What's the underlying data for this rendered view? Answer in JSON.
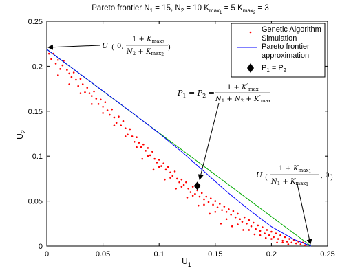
{
  "chart_data": {
    "type": "scatter",
    "title": "Pareto frontier N_1 = 15, N_2 = 10   K_max_1 = 5   K_max_2 = 3",
    "xlabel": "U_1",
    "ylabel": "U_2",
    "xlim": [
      0,
      0.25
    ],
    "ylim": [
      0,
      0.25
    ],
    "xticks": [
      "0",
      "0.05",
      "0.1",
      "0.15",
      "0.2",
      "0.25"
    ],
    "yticks": [
      "0",
      "0.05",
      "0.1",
      "0.15",
      "0.2",
      "0.25"
    ],
    "grid": false,
    "legend_position": "top-right",
    "legend": [
      "Genetic Algorithm Simulation",
      "Pareto frontier approximation",
      "P_1 = P_2"
    ],
    "series": [
      {
        "name": "Genetic Algorithm Simulation",
        "type": "scatter",
        "color": "#ff0000",
        "points": [
          [
            0.002,
            0.214
          ],
          [
            0.004,
            0.208
          ],
          [
            0.006,
            0.214
          ],
          [
            0.008,
            0.203
          ],
          [
            0.01,
            0.207
          ],
          [
            0.012,
            0.197
          ],
          [
            0.014,
            0.201
          ],
          [
            0.015,
            0.206
          ],
          [
            0.018,
            0.196
          ],
          [
            0.02,
            0.192
          ],
          [
            0.022,
            0.188
          ],
          [
            0.024,
            0.193
          ],
          [
            0.026,
            0.185
          ],
          [
            0.028,
            0.178
          ],
          [
            0.03,
            0.186
          ],
          [
            0.032,
            0.18
          ],
          [
            0.034,
            0.171
          ],
          [
            0.036,
            0.176
          ],
          [
            0.038,
            0.17
          ],
          [
            0.04,
            0.167
          ],
          [
            0.042,
            0.172
          ],
          [
            0.044,
            0.164
          ],
          [
            0.046,
            0.158
          ],
          [
            0.048,
            0.163
          ],
          [
            0.05,
            0.155
          ],
          [
            0.052,
            0.16
          ],
          [
            0.054,
            0.151
          ],
          [
            0.056,
            0.146
          ],
          [
            0.058,
            0.152
          ],
          [
            0.06,
            0.143
          ],
          [
            0.062,
            0.137
          ],
          [
            0.064,
            0.144
          ],
          [
            0.066,
            0.134
          ],
          [
            0.068,
            0.139
          ],
          [
            0.07,
            0.131
          ],
          [
            0.072,
            0.124
          ],
          [
            0.074,
            0.13
          ],
          [
            0.076,
            0.122
          ],
          [
            0.078,
            0.116
          ],
          [
            0.08,
            0.121
          ],
          [
            0.082,
            0.115
          ],
          [
            0.084,
            0.11
          ],
          [
            0.086,
            0.113
          ],
          [
            0.088,
            0.106
          ],
          [
            0.09,
            0.109
          ],
          [
            0.092,
            0.101
          ],
          [
            0.094,
            0.105
          ],
          [
            0.096,
            0.097
          ],
          [
            0.098,
            0.093
          ],
          [
            0.1,
            0.096
          ],
          [
            0.102,
            0.089
          ],
          [
            0.104,
            0.092
          ],
          [
            0.106,
            0.085
          ],
          [
            0.108,
            0.088
          ],
          [
            0.11,
            0.082
          ],
          [
            0.112,
            0.078
          ],
          [
            0.114,
            0.083
          ],
          [
            0.116,
            0.075
          ],
          [
            0.118,
            0.071
          ],
          [
            0.12,
            0.074
          ],
          [
            0.122,
            0.068
          ],
          [
            0.124,
            0.071
          ],
          [
            0.126,
            0.064
          ],
          [
            0.128,
            0.06
          ],
          [
            0.13,
            0.066
          ],
          [
            0.132,
            0.058
          ],
          [
            0.134,
            0.062
          ],
          [
            0.136,
            0.055
          ],
          [
            0.138,
            0.059
          ],
          [
            0.14,
            0.052
          ],
          [
            0.142,
            0.055
          ],
          [
            0.144,
            0.049
          ],
          [
            0.146,
            0.053
          ],
          [
            0.148,
            0.046
          ],
          [
            0.15,
            0.05
          ],
          [
            0.152,
            0.043
          ],
          [
            0.154,
            0.047
          ],
          [
            0.156,
            0.04
          ],
          [
            0.158,
            0.044
          ],
          [
            0.16,
            0.038
          ],
          [
            0.162,
            0.041
          ],
          [
            0.164,
            0.035
          ],
          [
            0.166,
            0.039
          ],
          [
            0.168,
            0.032
          ],
          [
            0.17,
            0.036
          ],
          [
            0.172,
            0.03
          ],
          [
            0.174,
            0.027
          ],
          [
            0.176,
            0.032
          ],
          [
            0.178,
            0.025
          ],
          [
            0.18,
            0.029
          ],
          [
            0.182,
            0.022
          ],
          [
            0.184,
            0.026
          ],
          [
            0.186,
            0.019
          ],
          [
            0.188,
            0.023
          ],
          [
            0.19,
            0.017
          ],
          [
            0.192,
            0.021
          ],
          [
            0.194,
            0.014
          ],
          [
            0.196,
            0.018
          ],
          [
            0.198,
            0.012
          ],
          [
            0.2,
            0.016
          ],
          [
            0.202,
            0.01
          ],
          [
            0.204,
            0.014
          ],
          [
            0.206,
            0.008
          ],
          [
            0.208,
            0.012
          ],
          [
            0.21,
            0.006
          ],
          [
            0.212,
            0.01
          ],
          [
            0.214,
            0.005
          ],
          [
            0.216,
            0.008
          ],
          [
            0.218,
            0.004
          ],
          [
            0.22,
            0.007
          ],
          [
            0.222,
            0.003
          ],
          [
            0.224,
            0.005
          ],
          [
            0.226,
            0.002
          ],
          [
            0.228,
            0.004
          ],
          [
            0.23,
            0.001
          ],
          [
            0.01,
            0.19
          ],
          [
            0.02,
            0.18
          ],
          [
            0.03,
            0.17
          ],
          [
            0.04,
            0.158
          ],
          [
            0.05,
            0.148
          ],
          [
            0.06,
            0.134
          ],
          [
            0.07,
            0.122
          ],
          [
            0.08,
            0.11
          ],
          [
            0.09,
            0.1
          ],
          [
            0.1,
            0.088
          ],
          [
            0.11,
            0.076
          ],
          [
            0.12,
            0.066
          ],
          [
            0.13,
            0.056
          ],
          [
            0.14,
            0.046
          ],
          [
            0.15,
            0.038
          ],
          [
            0.16,
            0.03
          ],
          [
            0.17,
            0.024
          ],
          [
            0.18,
            0.018
          ],
          [
            0.19,
            0.012
          ],
          [
            0.2,
            0.008
          ],
          [
            0.21,
            0.004
          ],
          [
            0.155,
            0.025
          ],
          [
            0.165,
            0.022
          ],
          [
            0.175,
            0.018
          ],
          [
            0.185,
            0.013
          ],
          [
            0.195,
            0.009
          ],
          [
            0.205,
            0.004
          ],
          [
            0.215,
            0.002
          ],
          [
            0.145,
            0.036
          ],
          [
            0.135,
            0.045
          ],
          [
            0.125,
            0.054
          ],
          [
            0.115,
            0.064
          ],
          [
            0.105,
            0.074
          ],
          [
            0.095,
            0.085
          ],
          [
            0.085,
            0.097
          ]
        ]
      },
      {
        "name": "Pareto frontier approximation",
        "type": "line",
        "color": "#0000ff",
        "points": [
          [
            0,
            0.2188
          ],
          [
            0.02,
            0.2003
          ],
          [
            0.04,
            0.1818
          ],
          [
            0.06,
            0.1632
          ],
          [
            0.08,
            0.1446
          ],
          [
            0.1,
            0.1254
          ],
          [
            0.12,
            0.105
          ],
          [
            0.14,
            0.083
          ],
          [
            0.16,
            0.0608
          ],
          [
            0.18,
            0.0404
          ],
          [
            0.2,
            0.0216
          ],
          [
            0.22,
            0.0075
          ],
          [
            0.2353,
            0
          ]
        ]
      },
      {
        "name": "",
        "type": "line",
        "color": "#00aa00",
        "points": [
          [
            0,
            0.2188
          ],
          [
            0.2353,
            0
          ]
        ]
      },
      {
        "name": "P_1 = P_2",
        "type": "marker",
        "marker": "diamond",
        "color": "#000000",
        "points": [
          [
            0.134,
            0.067
          ]
        ]
      }
    ],
    "annotations": [
      {
        "text": "U ( 0, (1 + K_max_2)/(N_2 + K_max_2) )",
        "target": [
          0,
          0.2188
        ]
      },
      {
        "text": "P_1 = P_2 = (1 + K_max)/(N_1 + N_2 + K_max)",
        "target": [
          0.134,
          0.067
        ]
      },
      {
        "text": "U ( (1 + K_max_1)/(N_1 + K_max_1), 0 )",
        "target": [
          0.2353,
          0
        ]
      }
    ]
  }
}
